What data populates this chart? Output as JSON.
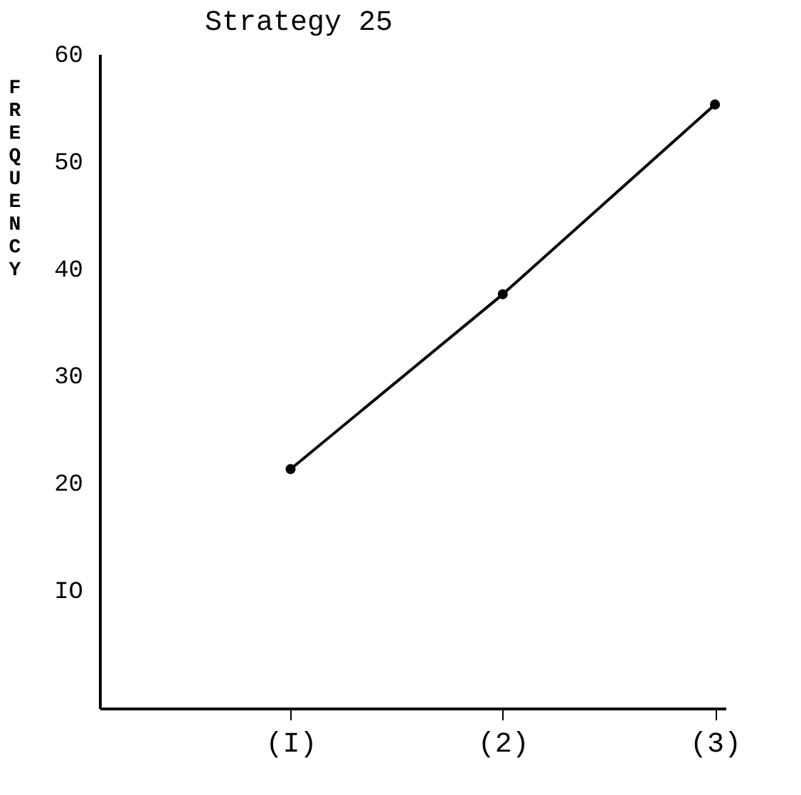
{
  "chart_data": {
    "type": "line",
    "title": "Strategy 25",
    "ylabel": "FREQUENCY",
    "categories": [
      "(I)",
      "(2)",
      "(3)"
    ],
    "series": [
      {
        "color": "#000000",
        "values": [
          21.3,
          37.6,
          55.3
        ]
      }
    ],
    "ylim": [
      -1,
      60
    ],
    "yticks": [
      {
        "value": 10,
        "label": "IO"
      },
      20,
      30,
      40,
      50,
      60
    ],
    "grid": false,
    "marker": "circle",
    "line_style": "solid",
    "legend": false
  }
}
